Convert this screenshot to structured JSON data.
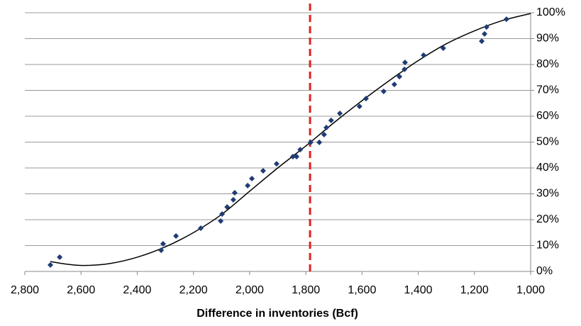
{
  "chart_data": {
    "type": "scatter",
    "x_label": "Difference in inventories (Bcf)",
    "xlim": [
      2800,
      1000
    ],
    "xticks": [
      {
        "value": 2800,
        "label": "2,800"
      },
      {
        "value": 2600,
        "label": "2,600"
      },
      {
        "value": 2400,
        "label": "2,400"
      },
      {
        "value": 2200,
        "label": "2,200"
      },
      {
        "value": 2000,
        "label": "2,000"
      },
      {
        "value": 1800,
        "label": "1,800"
      },
      {
        "value": 1600,
        "label": "1,600"
      },
      {
        "value": 1400,
        "label": "1,400"
      },
      {
        "value": 1200,
        "label": "1,200"
      },
      {
        "value": 1000,
        "label": "1,000"
      }
    ],
    "ylim": [
      0,
      100
    ],
    "yticks": [
      {
        "value": 0,
        "label": "0%"
      },
      {
        "value": 10,
        "label": "10%"
      },
      {
        "value": 20,
        "label": "20%"
      },
      {
        "value": 30,
        "label": "30%"
      },
      {
        "value": 40,
        "label": "40%"
      },
      {
        "value": 50,
        "label": "50%"
      },
      {
        "value": 60,
        "label": "60%"
      },
      {
        "value": 70,
        "label": "70%"
      },
      {
        "value": 80,
        "label": "80%"
      },
      {
        "value": 90,
        "label": "90%"
      },
      {
        "value": 100,
        "label": "100%"
      }
    ],
    "grid": true,
    "series": [
      {
        "color": "#1f3c74",
        "x": [
          2709,
          2676,
          2315,
          2308,
          2262,
          2174,
          2103,
          2098,
          2080,
          2058,
          2053,
          2007,
          1992,
          1952,
          1904,
          1846,
          1833,
          1820,
          1783,
          1752,
          1735,
          1727,
          1710,
          1679,
          1609,
          1586,
          1523,
          1485,
          1467,
          1449,
          1447,
          1381,
          1311,
          1174,
          1164,
          1157,
          1086
        ],
        "values": [
          2.5,
          5.5,
          8.2,
          10.7,
          13.7,
          16.7,
          19.5,
          22.2,
          24.9,
          27.7,
          30.4,
          33.2,
          35.9,
          38.9,
          41.6,
          44.4,
          44.4,
          47.1,
          49.9,
          49.9,
          52.9,
          55.6,
          58.4,
          61.1,
          63.8,
          66.8,
          69.6,
          72.3,
          75.3,
          78.1,
          80.8,
          83.6,
          86.3,
          89.0,
          91.8,
          94.5,
          97.5
        ]
      }
    ],
    "trendline": {
      "color": "#000000",
      "x": [
        2709,
        2650,
        2590,
        2500,
        2400,
        2300,
        2200,
        2100,
        2000,
        1900,
        1800,
        1700,
        1600,
        1500,
        1400,
        1300,
        1200,
        1100,
        1000
      ],
      "values": [
        3.8,
        2.8,
        2.3,
        3,
        5.5,
        9.5,
        15,
        22,
        31,
        40,
        48.5,
        57.5,
        66,
        74,
        81.5,
        88,
        93,
        97,
        99.7
      ]
    },
    "reference_line": {
      "x": 1785,
      "color": "#e02020"
    }
  }
}
